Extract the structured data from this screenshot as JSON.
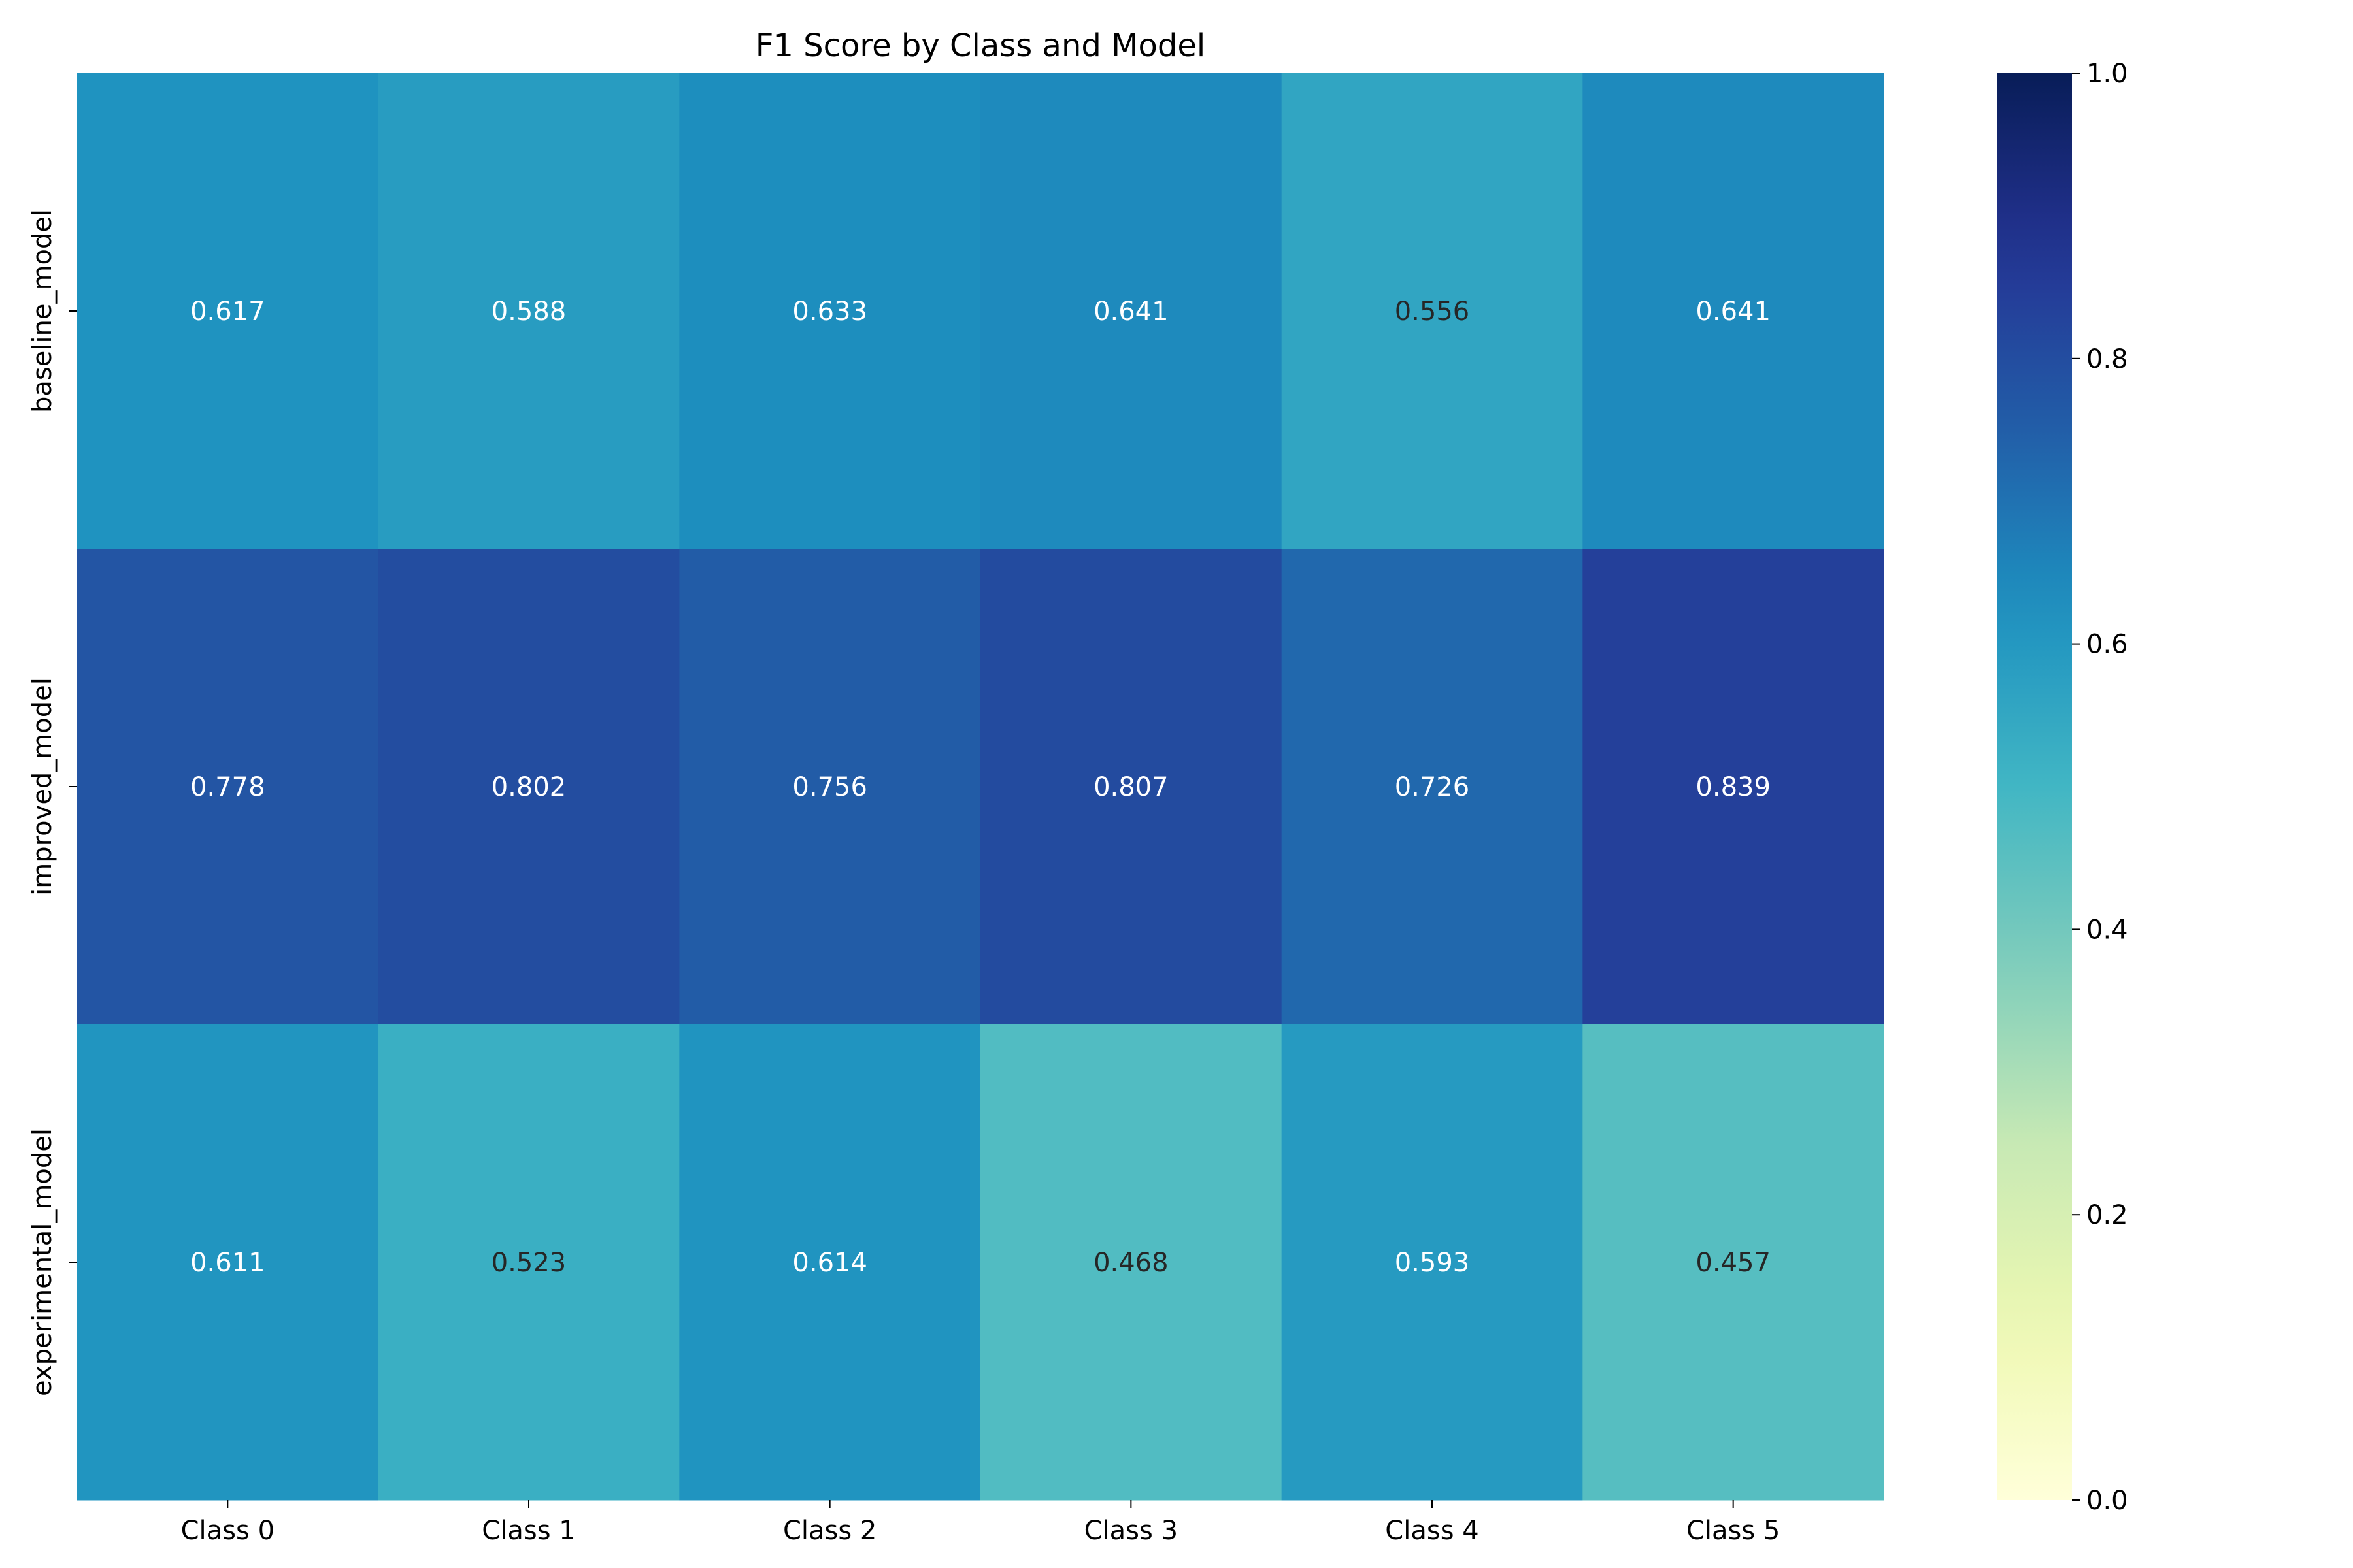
{
  "chart_data": {
    "type": "heatmap",
    "title": "F1 Score by Class and Model",
    "xlabel": "",
    "ylabel": "",
    "columns": [
      "Class 0",
      "Class 1",
      "Class 2",
      "Class 3",
      "Class 4",
      "Class 5"
    ],
    "rows": [
      "baseline_model",
      "improved_model",
      "experimental_model"
    ],
    "values": [
      [
        0.617,
        0.588,
        0.633,
        0.641,
        0.556,
        0.641
      ],
      [
        0.778,
        0.802,
        0.756,
        0.807,
        0.726,
        0.839
      ],
      [
        0.611,
        0.523,
        0.614,
        0.468,
        0.593,
        0.457
      ]
    ],
    "value_format": "0.000",
    "colormap": "YlGnBu",
    "vmin": 0.0,
    "vmax": 1.0,
    "colorbar": {
      "position": "right",
      "ticks": [
        "0.0",
        "0.2",
        "0.4",
        "0.6",
        "0.8",
        "1.0"
      ]
    },
    "grid": false,
    "colors": {
      "annotation_light": "#ffffff",
      "annotation_dark": "#262626"
    }
  }
}
